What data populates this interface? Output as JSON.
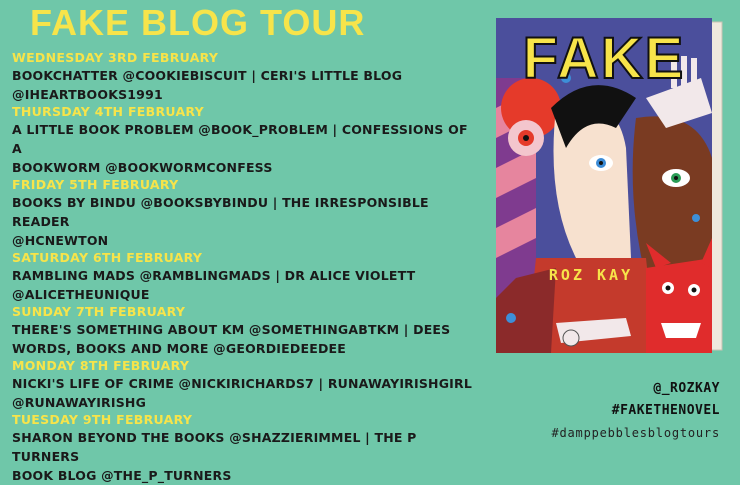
{
  "title": "FAKE BLOG TOUR",
  "schedule": [
    {
      "day": "WEDNESDAY 3RD FEBRUARY",
      "lines": [
        "BOOKCHATTER @COOKIEBISCUIT | CERI'S LITTLE BLOG",
        "@IHEARTBOOKS1991"
      ]
    },
    {
      "day": "THURSDAY 4TH FEBRUARY",
      "lines": [
        "A LITTLE BOOK PROBLEM @BOOK_PROBLEM | CONFESSIONS OF A",
        "BOOKWORM @BOOKWORMCONFESS"
      ]
    },
    {
      "day": "FRIDAY 5TH FEBRUARY",
      "lines": [
        "BOOKS BY BINDU @BOOKSBYBINDU | THE IRRESPONSIBLE READER",
        "@HCNEWTON"
      ]
    },
    {
      "day": "SATURDAY 6TH FEBRUARY",
      "lines": [
        "RAMBLING MADS @RAMBLINGMADS | DR ALICE VIOLETT",
        "@ALICETHEUNIQUE"
      ]
    },
    {
      "day": "SUNDAY 7TH FEBRUARY",
      "lines": [
        "THERE'S SOMETHING ABOUT KM @SOMETHINGABTKM | DEES",
        "WORDS, BOOKS AND MORE @GEORDIEDEEDEE"
      ]
    },
    {
      "day": "MONDAY 8TH FEBRUARY",
      "lines": [
        "NICKI'S LIFE OF CRIME @NICKIRICHARDS7 | RUNAWAYIRISHGIRL",
        "@RUNAWAYIRISHG"
      ]
    },
    {
      "day": "TUESDAY 9TH FEBRUARY",
      "lines": [
        "SHARON BEYOND THE BOOKS @SHAZZIERIMMEL | THE P TURNERS",
        "BOOK BLOG @THE_P_TURNERS"
      ]
    }
  ],
  "book": {
    "title": "FAKE",
    "author": "ROZ KAY"
  },
  "footer": {
    "author_handle": "@_ROZKAY",
    "hashtag": "#FAKETHENOVEL",
    "tour_tag": "#damppebblesblogtours"
  },
  "colors": {
    "background": "#6fc7a9",
    "accent": "#f7e44a",
    "text": "#1a1a1a"
  }
}
